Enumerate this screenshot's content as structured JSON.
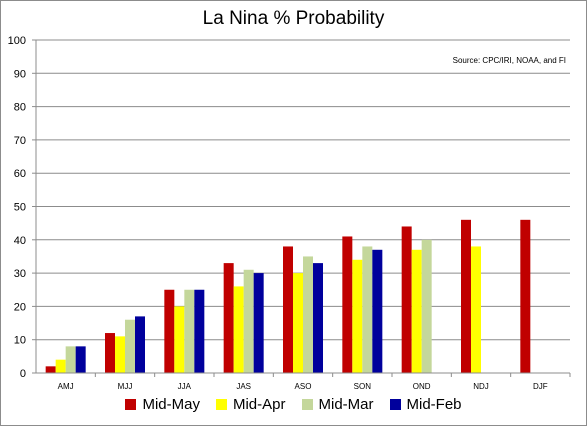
{
  "chart_data": {
    "type": "bar",
    "title": "La Nina % Probability",
    "annotation": "Source: CPC/IRI, NOAA, and FI",
    "xlabel": "",
    "ylabel": "",
    "categories": [
      "AMJ",
      "MJJ",
      "JJA",
      "JAS",
      "ASO",
      "SON",
      "OND",
      "NDJ",
      "DJF"
    ],
    "ylim": [
      0,
      100
    ],
    "yticks": [
      0,
      10,
      20,
      30,
      40,
      50,
      60,
      70,
      80,
      90,
      100
    ],
    "grid": true,
    "legend_position": "bottom",
    "series": [
      {
        "name": "Mid-May",
        "color": "#c00000",
        "values": [
          2,
          12,
          25,
          33,
          38,
          41,
          44,
          46,
          46
        ]
      },
      {
        "name": "Mid-Apr",
        "color": "#ffff00",
        "values": [
          4,
          11,
          20,
          26,
          30,
          34,
          37,
          38,
          null
        ]
      },
      {
        "name": "Mid-Mar",
        "color": "#c4d79b",
        "values": [
          8,
          16,
          25,
          31,
          35,
          38,
          40,
          null,
          null
        ]
      },
      {
        "name": "Mid-Feb",
        "color": "#00009c",
        "values": [
          8,
          17,
          25,
          30,
          33,
          37,
          null,
          null,
          null
        ]
      }
    ]
  }
}
